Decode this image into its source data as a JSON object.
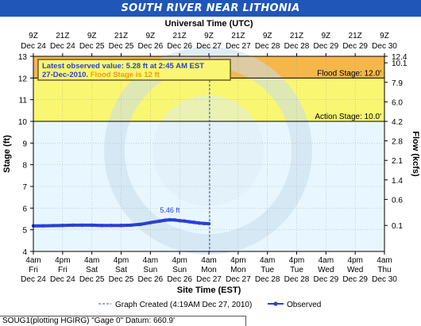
{
  "banner": {
    "title": "SOUTH RIVER NEAR LITHONIA"
  },
  "chart_data": {
    "type": "line",
    "title": "SOUTH RIVER NEAR LITHONIA",
    "top_axis_title": "Universal Time (UTC)",
    "xlabel": "Site Time (EST)",
    "ylabel": "Stage (ft)",
    "y2label": "Flow (kcfs)",
    "ylim": [
      4,
      13
    ],
    "xlim": [
      "Dec 24 4am",
      "Dec 30 4am"
    ],
    "xlim_hours": [
      0,
      144
    ],
    "left_ticks": [
      "4",
      "5",
      "6",
      "7",
      "8",
      "9",
      "10",
      "11",
      "12",
      "13"
    ],
    "right_ticks": [
      {
        "stage": 5.2,
        "label": "0.1"
      },
      {
        "stage": 6.4,
        "label": "0.6"
      },
      {
        "stage": 7.3,
        "label": "1.4"
      },
      {
        "stage": 8.2,
        "label": "2.1"
      },
      {
        "stage": 9.1,
        "label": "2.8"
      },
      {
        "stage": 10.0,
        "label": "4.2"
      },
      {
        "stage": 10.9,
        "label": "6.0"
      },
      {
        "stage": 11.8,
        "label": "7.9"
      },
      {
        "stage": 12.7,
        "label": "10.1"
      },
      {
        "stage": 13.0,
        "label": "12.4"
      }
    ],
    "bottom_ticks": [
      {
        "h": 0,
        "time": "4am",
        "day": "Fri",
        "date": "Dec 24"
      },
      {
        "h": 12,
        "time": "4pm",
        "day": "Fri",
        "date": "Dec 24"
      },
      {
        "h": 24,
        "time": "4am",
        "day": "Sat",
        "date": "Dec 25"
      },
      {
        "h": 36,
        "time": "4pm",
        "day": "Sat",
        "date": "Dec 25"
      },
      {
        "h": 48,
        "time": "4am",
        "day": "Sun",
        "date": "Dec 26"
      },
      {
        "h": 60,
        "time": "4pm",
        "day": "Sun",
        "date": "Dec 26"
      },
      {
        "h": 72,
        "time": "4am",
        "day": "Mon",
        "date": "Dec 27"
      },
      {
        "h": 84,
        "time": "4pm",
        "day": "Mon",
        "date": "Dec 27"
      },
      {
        "h": 96,
        "time": "4am",
        "day": "Tue",
        "date": "Dec 28"
      },
      {
        "h": 108,
        "time": "4pm",
        "day": "Tue",
        "date": "Dec 28"
      },
      {
        "h": 120,
        "time": "4am",
        "day": "Wed",
        "date": "Dec 29"
      },
      {
        "h": 132,
        "time": "4pm",
        "day": "Wed",
        "date": "Dec 29"
      },
      {
        "h": 144,
        "time": "4am",
        "day": "Thu",
        "date": "Dec 30"
      }
    ],
    "top_ticks": [
      {
        "h": 0,
        "time": "9Z",
        "date": "Dec 24"
      },
      {
        "h": 12,
        "time": "21Z",
        "date": "Dec 24"
      },
      {
        "h": 24,
        "time": "9Z",
        "date": "Dec 25"
      },
      {
        "h": 36,
        "time": "21Z",
        "date": "Dec 25"
      },
      {
        "h": 48,
        "time": "9Z",
        "date": "Dec 26"
      },
      {
        "h": 60,
        "time": "21Z",
        "date": "Dec 26"
      },
      {
        "h": 72,
        "time": "9Z",
        "date": "Dec 27"
      },
      {
        "h": 84,
        "time": "21Z",
        "date": "Dec 27"
      },
      {
        "h": 96,
        "time": "9Z",
        "date": "Dec 28"
      },
      {
        "h": 108,
        "time": "21Z",
        "date": "Dec 28"
      },
      {
        "h": 120,
        "time": "9Z",
        "date": "Dec 29"
      },
      {
        "h": 132,
        "time": "21Z",
        "date": "Dec 29"
      },
      {
        "h": 144,
        "time": "9Z",
        "date": "Dec 30"
      }
    ],
    "flood_stage": 12.0,
    "action_stage": 10.0,
    "flood_stage_label": "Flood Stage: 12.0'",
    "action_stage_label": "Action Stage: 10.0'",
    "graph_created_h": 72.3,
    "series": [
      {
        "name": "Observed",
        "color": "#2b3fd6",
        "x": [
          0,
          4,
          8,
          12,
          16,
          20,
          24,
          28,
          32,
          36,
          40,
          44,
          48,
          52,
          54,
          56,
          58,
          60,
          62,
          64,
          66,
          68,
          70,
          72
        ],
        "y": [
          5.18,
          5.18,
          5.19,
          5.2,
          5.21,
          5.21,
          5.21,
          5.2,
          5.2,
          5.2,
          5.21,
          5.25,
          5.33,
          5.4,
          5.44,
          5.46,
          5.45,
          5.42,
          5.4,
          5.37,
          5.34,
          5.31,
          5.29,
          5.28
        ]
      }
    ],
    "peak_label": "5.46 ft",
    "peak_h": 56,
    "peak_value": 5.46,
    "colors": {
      "flood_band": "#f5b74a",
      "action_band": "#f9f771",
      "normal_band": "#e8f7ff",
      "banner": "#1f56b8",
      "series": "#2b3fd6",
      "annotation_value": "#2b3fd6",
      "annotation_flood": "#f29a0a"
    },
    "annotation": {
      "line1": "Latest observed value: 5.28 ft at 2:45 AM EST",
      "line2a": "27-Dec-2010.",
      "line2b": "Flood Stage is 12 ft"
    },
    "legend": {
      "created": "Graph Created (4:19AM Dec 27, 2010)",
      "observed": "Observed"
    }
  },
  "footer": {
    "text": "SOUG1(plotting HGIRG) \"Gage 0\" Datum: 660.9'"
  }
}
